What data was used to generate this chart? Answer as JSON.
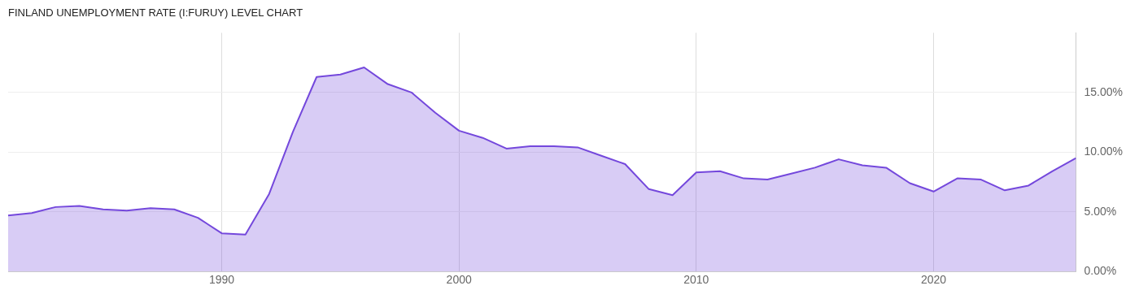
{
  "chart_data": {
    "type": "area",
    "title": "FINLAND UNEMPLOYMENT RATE (I:FURUY) LEVEL CHART",
    "x": [
      1981,
      1982,
      1983,
      1984,
      1985,
      1986,
      1987,
      1988,
      1989,
      1990,
      1991,
      1992,
      1993,
      1994,
      1995,
      1996,
      1997,
      1998,
      1999,
      2000,
      2001,
      2002,
      2003,
      2004,
      2005,
      2006,
      2007,
      2008,
      2009,
      2010,
      2011,
      2012,
      2013,
      2014,
      2015,
      2016,
      2017,
      2018,
      2019,
      2020,
      2021,
      2022,
      2023,
      2024,
      2025,
      2026
    ],
    "series": [
      {
        "color": "#7448dc",
        "values": [
          4.7,
          4.9,
          5.4,
          5.5,
          5.2,
          5.1,
          5.3,
          5.2,
          4.5,
          3.2,
          3.1,
          6.5,
          11.7,
          16.3,
          16.5,
          17.1,
          15.7,
          15.0,
          13.3,
          11.8,
          11.2,
          10.3,
          10.5,
          10.5,
          10.4,
          9.7,
          9.0,
          6.9,
          6.4,
          8.3,
          8.4,
          7.8,
          7.7,
          8.2,
          8.7,
          9.4,
          8.9,
          8.7,
          7.4,
          6.7,
          7.8,
          7.7,
          6.8,
          7.2,
          8.4,
          9.5
        ]
      }
    ],
    "xlim": [
      1981,
      2026
    ],
    "xticks": [
      1990,
      2000,
      2010,
      2020
    ],
    "ylim": [
      0,
      20
    ],
    "yticks": [
      {
        "value": 0,
        "label": "0.00%"
      },
      {
        "value": 5,
        "label": "5.00%"
      },
      {
        "value": 10,
        "label": "10.00%"
      },
      {
        "value": 15,
        "label": "15.00%"
      }
    ],
    "grid": true,
    "legend": false,
    "marker": "none",
    "line_style": "solid"
  }
}
